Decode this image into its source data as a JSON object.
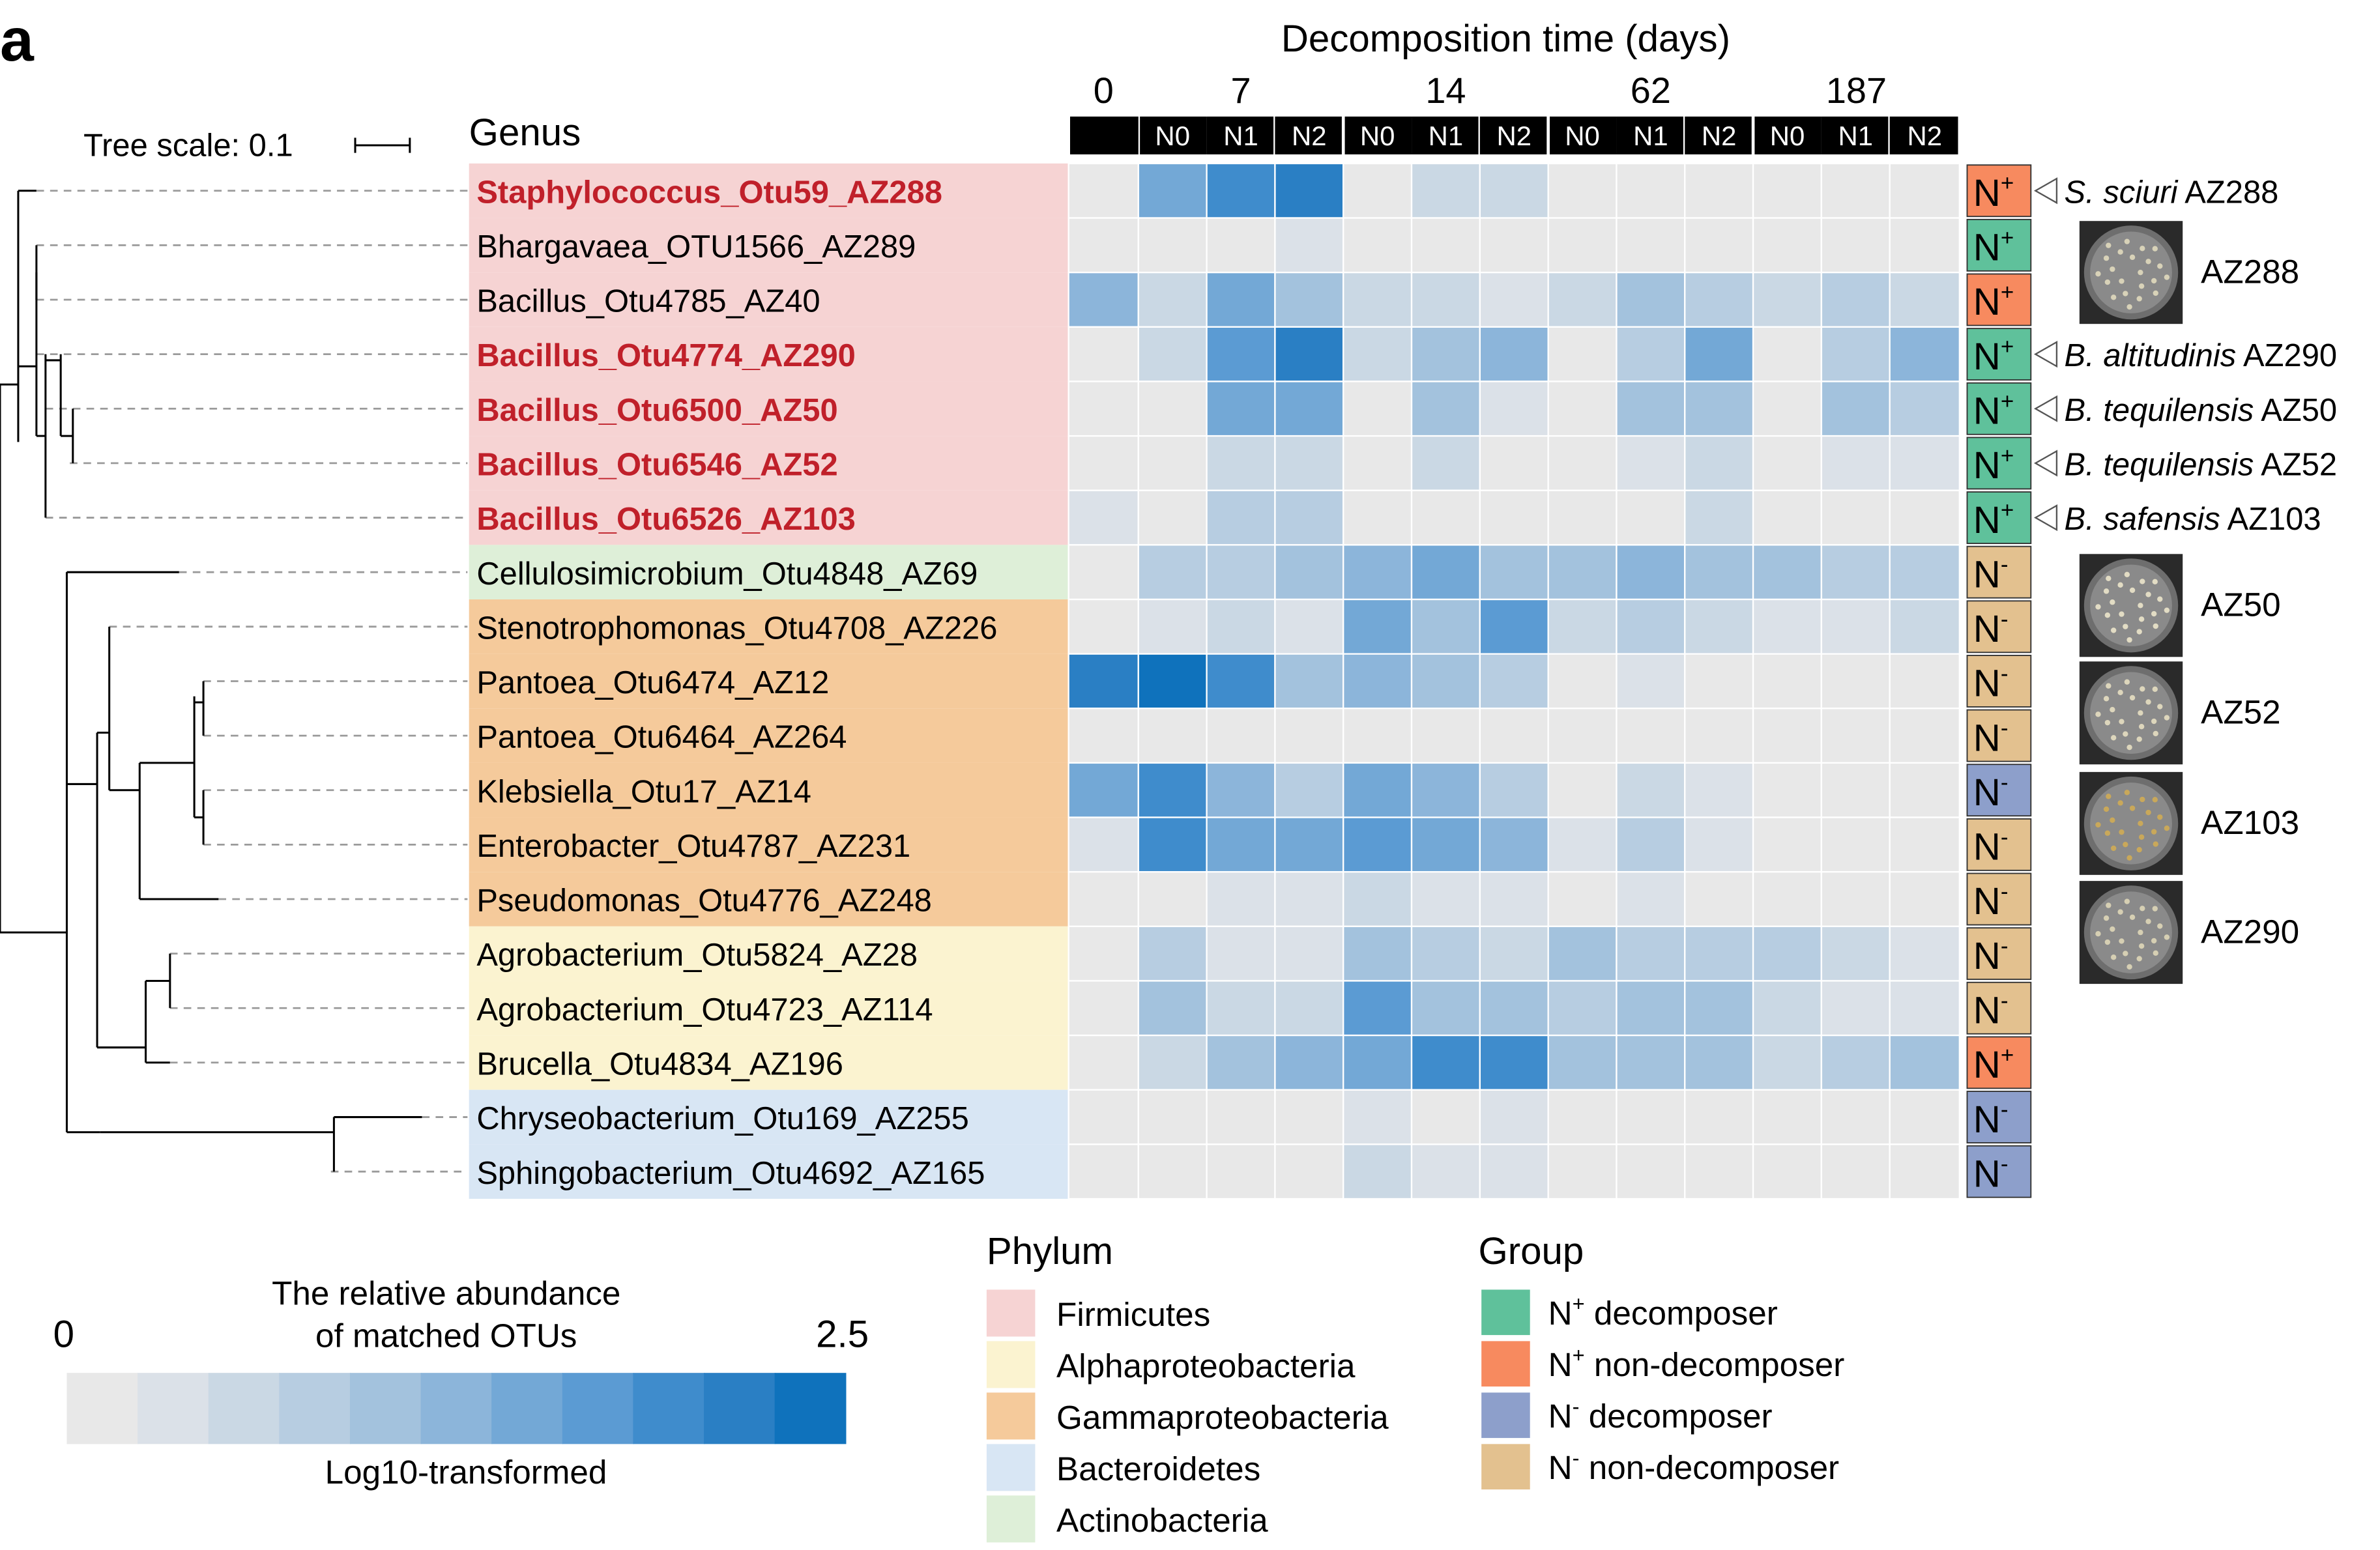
{
  "panel_letter": "a",
  "tree": {
    "scale_label": "Tree scale: 0.1",
    "tips": [
      "Staphylococcus_Otu59_AZ288",
      "Bhargavaea_OTU1566_AZ289",
      "Bacillus_Otu4785_AZ40",
      "Bacillus_Otu4774_AZ290",
      "Bacillus_Otu6500_AZ50",
      "Bacillus_Otu6546_AZ52",
      "Bacillus_Otu6526_AZ103",
      "Cellulosimicrobium_Otu4848_AZ69",
      "Stenotrophomonas_Otu4708_AZ226",
      "Pantoea_Otu6474_AZ12",
      "Pantoea_Otu6464_AZ264",
      "Klebsiella_Otu17_AZ14",
      "Enterobacter_Otu4787_AZ231",
      "Pseudomonas_Otu4776_AZ248",
      "Agrobacterium_Otu5824_AZ28",
      "Agrobacterium_Otu4723_AZ114",
      "Brucella_Otu4834_AZ196",
      "Chryseobacterium_Otu169_AZ255",
      "Sphingobacterium_Otu4692_AZ165"
    ]
  },
  "genus_header": "Genus",
  "chart_data": {
    "type": "heatmap",
    "title": "Decomposition time (days)",
    "time_points": [
      "0",
      "7",
      "14",
      "62",
      "187"
    ],
    "column_groups": [
      {
        "time": "0",
        "columns": [
          ""
        ]
      },
      {
        "time": "7",
        "columns": [
          "N0",
          "N1",
          "N2"
        ]
      },
      {
        "time": "14",
        "columns": [
          "N0",
          "N1",
          "N2"
        ]
      },
      {
        "time": "62",
        "columns": [
          "N0",
          "N1",
          "N2"
        ]
      },
      {
        "time": "187",
        "columns": [
          "N0",
          "N1",
          "N2"
        ]
      }
    ],
    "rows": [
      {
        "label": "Staphylococcus_Otu59_AZ288",
        "highlight": true,
        "phylum": "Firmicutes",
        "group": "N+ non-decomposer",
        "values": [
          0.05,
          1.4,
          2.1,
          2.2,
          0.05,
          0.4,
          0.45,
          0.05,
          0.05,
          0.05,
          0.05,
          0.05,
          0.05
        ]
      },
      {
        "label": "Bhargavaea_OTU1566_AZ289",
        "highlight": false,
        "phylum": "Firmicutes",
        "group": "N+ decomposer",
        "values": [
          0.05,
          0.1,
          0.1,
          0.2,
          0.05,
          0.05,
          0.05,
          0.05,
          0.05,
          0.05,
          0.05,
          0.05,
          0.05
        ]
      },
      {
        "label": "Bacillus_Otu4785_AZ40",
        "highlight": false,
        "phylum": "Firmicutes",
        "group": "N+ non-decomposer",
        "values": [
          1.2,
          0.55,
          1.4,
          1.0,
          0.45,
          0.55,
          0.35,
          0.45,
          0.9,
          0.85,
          0.5,
          0.7,
          0.6
        ]
      },
      {
        "label": "Bacillus_Otu4774_AZ290",
        "highlight": true,
        "phylum": "Firmicutes",
        "group": "N+ decomposer",
        "values": [
          0.05,
          0.6,
          1.7,
          2.2,
          0.4,
          1.1,
          1.35,
          0.05,
          0.7,
          1.5,
          0.05,
          0.8,
          1.2
        ]
      },
      {
        "label": "Bacillus_Otu6500_AZ50",
        "highlight": true,
        "phylum": "Firmicutes",
        "group": "N+ decomposer",
        "values": [
          0.05,
          0.05,
          1.5,
          1.4,
          0.05,
          0.9,
          0.3,
          0.05,
          1.0,
          0.9,
          0.05,
          0.9,
          0.8
        ]
      },
      {
        "label": "Bacillus_Otu6546_AZ52",
        "highlight": true,
        "phylum": "Firmicutes",
        "group": "N+ decomposer",
        "values": [
          0.05,
          0.05,
          0.6,
          0.55,
          0.05,
          0.55,
          0.05,
          0.05,
          0.25,
          0.4,
          0.05,
          0.2,
          0.2
        ]
      },
      {
        "label": "Bacillus_Otu6526_AZ103",
        "highlight": true,
        "phylum": "Firmicutes",
        "group": "N+ decomposer",
        "values": [
          0.2,
          0.05,
          0.7,
          0.8,
          0.05,
          0.05,
          0.05,
          0.05,
          0.05,
          0.6,
          0.05,
          0.05,
          0.05
        ]
      },
      {
        "label": "Cellulosimicrobium_Otu4848_AZ69",
        "highlight": false,
        "phylum": "Actinobacteria",
        "group": "N- non-decomposer",
        "values": [
          0.05,
          0.7,
          0.8,
          1.0,
          1.2,
          1.4,
          1.1,
          0.9,
          1.2,
          1.1,
          0.9,
          0.8,
          0.8
        ]
      },
      {
        "label": "Stenotrophomonas_Otu4708_AZ226",
        "highlight": false,
        "phylum": "Gammaproteobacteria",
        "group": "N- non-decomposer",
        "values": [
          0.05,
          0.15,
          0.55,
          0.25,
          1.6,
          0.9,
          1.7,
          0.5,
          0.8,
          0.6,
          0.25,
          0.35,
          0.4
        ]
      },
      {
        "label": "Pantoea_Otu6474_AZ12",
        "highlight": false,
        "phylum": "Gammaproteobacteria",
        "group": "N- non-decomposer",
        "values": [
          2.3,
          2.4,
          1.9,
          1.0,
          1.2,
          0.95,
          0.8,
          0.05,
          0.3,
          0.05,
          0.05,
          0.05,
          0.05
        ]
      },
      {
        "label": "Pantoea_Otu6464_AZ264",
        "highlight": false,
        "phylum": "Gammaproteobacteria",
        "group": "N- non-decomposer",
        "values": [
          0.05,
          0.05,
          0.05,
          0.05,
          0.05,
          0.05,
          0.05,
          0.05,
          0.05,
          0.05,
          0.05,
          0.05,
          0.05
        ]
      },
      {
        "label": "Klebsiella_Otu17_AZ14",
        "highlight": false,
        "phylum": "Gammaproteobacteria",
        "group": "N- decomposer",
        "values": [
          1.6,
          1.9,
          1.3,
          0.85,
          1.6,
          1.3,
          0.85,
          0.1,
          0.6,
          0.3,
          0.05,
          0.05,
          0.05
        ]
      },
      {
        "label": "Enterobacter_Otu4787_AZ231",
        "highlight": false,
        "phylum": "Gammaproteobacteria",
        "group": "N- non-decomposer",
        "values": [
          0.2,
          1.9,
          1.6,
          1.5,
          1.7,
          1.6,
          1.3,
          0.3,
          0.7,
          0.35,
          0.05,
          0.05,
          0.1
        ]
      },
      {
        "label": "Pseudomonas_Otu4776_AZ248",
        "highlight": false,
        "phylum": "Gammaproteobacteria",
        "group": "N- non-decomposer",
        "values": [
          0.05,
          0.05,
          0.25,
          0.3,
          0.55,
          0.2,
          0.15,
          0.05,
          0.2,
          0.05,
          0.05,
          0.05,
          0.05
        ]
      },
      {
        "label": "Agrobacterium_Otu5824_AZ28",
        "highlight": false,
        "phylum": "Alphaproteobacteria",
        "group": "N- non-decomposer",
        "values": [
          0.05,
          0.65,
          0.25,
          0.25,
          0.9,
          0.7,
          0.45,
          0.9,
          0.8,
          0.75,
          0.7,
          0.4,
          0.35
        ]
      },
      {
        "label": "Agrobacterium_Otu4723_AZ114",
        "highlight": false,
        "phylum": "Alphaproteobacteria",
        "group": "N- non-decomposer",
        "values": [
          0.05,
          1.0,
          0.4,
          0.45,
          1.7,
          0.9,
          1.0,
          0.7,
          1.1,
          1.0,
          0.45,
          0.2,
          0.3
        ]
      },
      {
        "label": "Brucella_Otu4834_AZ196",
        "highlight": false,
        "phylum": "Alphaproteobacteria",
        "group": "N+ non-decomposer",
        "values": [
          0.05,
          0.6,
          1.0,
          1.2,
          1.6,
          1.9,
          2.0,
          0.9,
          1.1,
          0.9,
          0.6,
          0.8,
          0.9
        ]
      },
      {
        "label": "Chryseobacterium_Otu169_AZ255",
        "highlight": false,
        "phylum": "Bacteroidetes",
        "group": "N- decomposer",
        "values": [
          0.05,
          0.05,
          0.05,
          0.05,
          0.3,
          0.05,
          0.15,
          0.05,
          0.05,
          0.05,
          0.05,
          0.05,
          0.05
        ]
      },
      {
        "label": "Sphingobacterium_Otu4692_AZ165",
        "highlight": false,
        "phylum": "Bacteroidetes",
        "group": "N- decomposer",
        "values": [
          0.05,
          0.05,
          0.05,
          0.05,
          0.4,
          0.15,
          0.2,
          0.05,
          0.05,
          0.05,
          0.05,
          0.05,
          0.05
        ]
      }
    ],
    "color_scale": {
      "min": 0,
      "max": 2.5,
      "min_label": "0",
      "max_label": "2.5",
      "title_line1": "The relative abundance",
      "title_line2": "of matched OTUs",
      "subtitle": "Log10-transformed",
      "colors": [
        "#e8e8e8",
        "#dbe1e8",
        "#cad8e4",
        "#b7cde1",
        "#a3c2dd",
        "#8cb5da",
        "#73a8d6",
        "#5b9bd3",
        "#3f8ccc",
        "#2a7fc4",
        "#0f72bc"
      ]
    }
  },
  "groups": {
    "N+ decomposer": {
      "sup": "+",
      "color": "#5fc19b"
    },
    "N+ non-decomposer": {
      "sup": "+",
      "color": "#f78a5f"
    },
    "N- decomposer": {
      "sup": "-",
      "color": "#8d9fcb"
    },
    "N- non-decomposer": {
      "sup": "-",
      "color": "#e3c18f"
    }
  },
  "group_letter": "N",
  "phyla": {
    "Firmicutes": "#f6d3d3",
    "Alphaproteobacteria": "#fbf3d0",
    "Gammaproteobacteria": "#f5ca9b",
    "Bacteroidetes": "#d8e6f4",
    "Actinobacteria": "#deefd8"
  },
  "isolates": [
    {
      "row": 0,
      "species": "S. sciuri",
      "strain": "AZ288"
    },
    {
      "row": 3,
      "species": "B. altitudinis",
      "strain": "AZ290"
    },
    {
      "row": 4,
      "species": "B. tequilensis",
      "strain": "AZ50"
    },
    {
      "row": 5,
      "species": "B. tequilensis",
      "strain": "AZ52"
    },
    {
      "row": 6,
      "species": "B. safensis",
      "strain": "AZ103"
    }
  ],
  "plates": [
    "AZ288",
    "AZ50",
    "AZ52",
    "AZ103",
    "AZ290"
  ],
  "legends": {
    "phylum_title": "Phylum",
    "phylum_items": [
      "Firmicutes",
      "Alphaproteobacteria",
      "Gammaproteobacteria",
      "Bacteroidetes",
      "Actinobacteria"
    ],
    "group_title": "Group",
    "group_items": [
      {
        "key": "N+ decomposer",
        "sup": "+",
        "text": " decomposer"
      },
      {
        "key": "N+ non-decomposer",
        "sup": "+",
        "text": " non-decomposer"
      },
      {
        "key": "N- decomposer",
        "sup": "-",
        "text": " decomposer"
      },
      {
        "key": "N- non-decomposer",
        "sup": "-",
        "text": " non-decomposer"
      }
    ]
  }
}
